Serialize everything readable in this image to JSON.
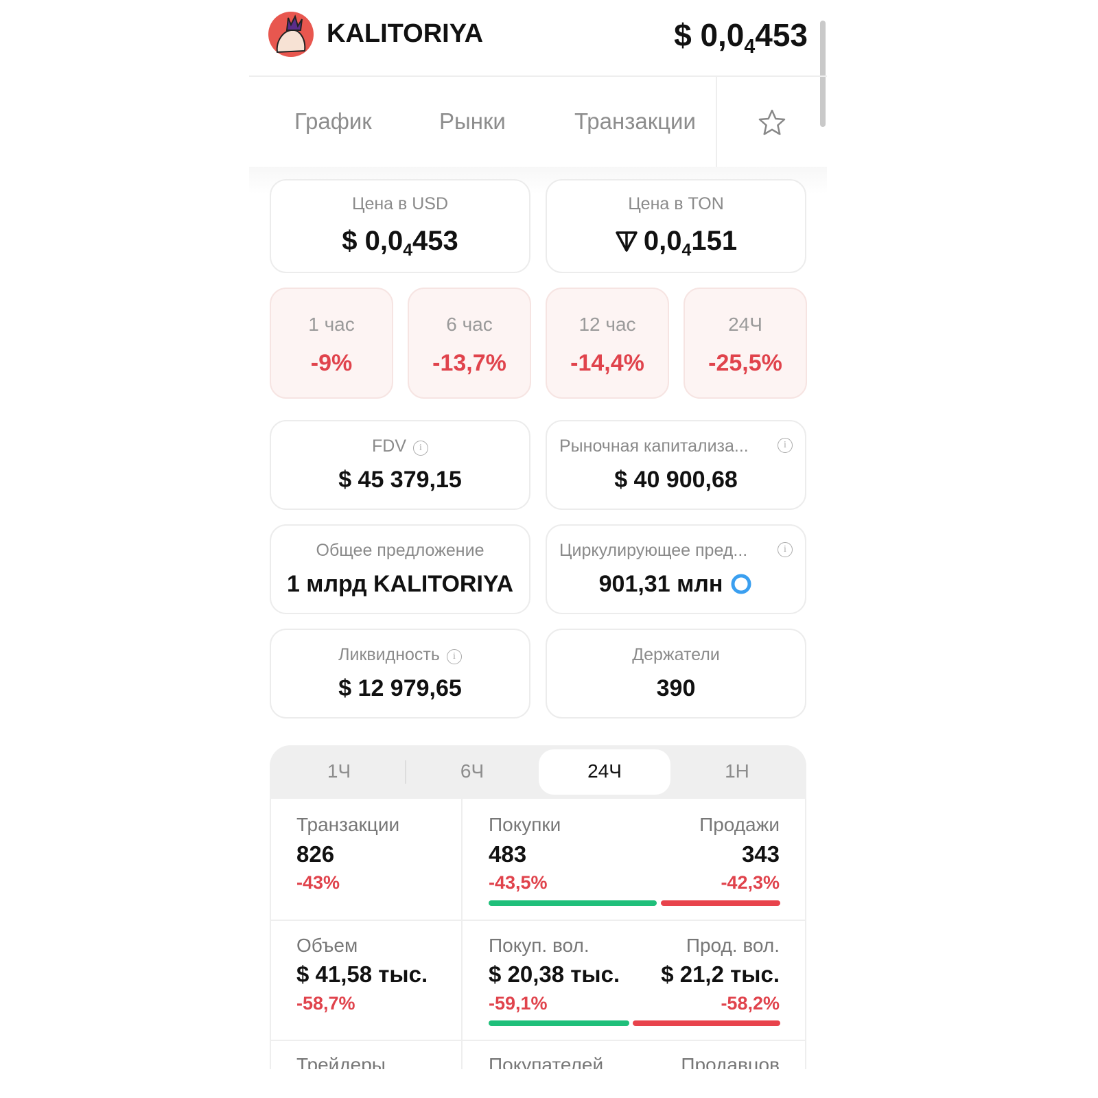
{
  "header": {
    "name": "KALITORIYA",
    "price": {
      "prefix": "$ 0,0",
      "sub": "4",
      "suffix": "453"
    }
  },
  "tabs": [
    "График",
    "Рынки",
    "Транзакции"
  ],
  "price_cards": [
    {
      "label": "Цена в USD",
      "value": {
        "prefix": "$ 0,0",
        "sub": "4",
        "suffix": "453"
      }
    },
    {
      "label": "Цена в TON",
      "value": {
        "prefix": "0,0",
        "sub": "4",
        "suffix": "151"
      }
    }
  ],
  "changes": [
    {
      "label": "1 час",
      "value": "-9%"
    },
    {
      "label": "6 час",
      "value": "-13,7%"
    },
    {
      "label": "12 час",
      "value": "-14,4%"
    },
    {
      "label": "24Ч",
      "value": "-25,5%"
    }
  ],
  "metrics": [
    {
      "label": "FDV",
      "value": "$ 45 379,15"
    },
    {
      "label": "Рыночная капитализа...",
      "value": "$ 40 900,68"
    },
    {
      "label": "Общее предложение",
      "value": "1 млрд KALITORIYA"
    },
    {
      "label": "Циркулирующее пред...",
      "value": "901,31 млн"
    },
    {
      "label": "Ликвидность",
      "value": "$ 12 979,65"
    },
    {
      "label": "Держатели",
      "value": "390"
    }
  ],
  "periods": [
    "1Ч",
    "6Ч",
    "24Ч",
    "1Н"
  ],
  "stats": [
    [
      {
        "label": "Транзакции",
        "value": "826",
        "change": "-43%"
      },
      {
        "label": "Покупки",
        "value": "483",
        "change": "-43,5%"
      },
      {
        "label": "Продажи",
        "value": "343",
        "change": "-42,3%"
      }
    ],
    [
      {
        "label": "Объем",
        "value": "$ 41,58 тыс.",
        "change": "-58,7%"
      },
      {
        "label": "Покуп. вол.",
        "value": "$ 20,38 тыс.",
        "change": "-59,1%"
      },
      {
        "label": "Прод. вол.",
        "value": "$ 21,2 тыс.",
        "change": "-58,2%"
      }
    ],
    [
      {
        "label": "Трейдеры"
      },
      {
        "label": "Покупателей"
      },
      {
        "label": "Продавцов"
      }
    ]
  ]
}
